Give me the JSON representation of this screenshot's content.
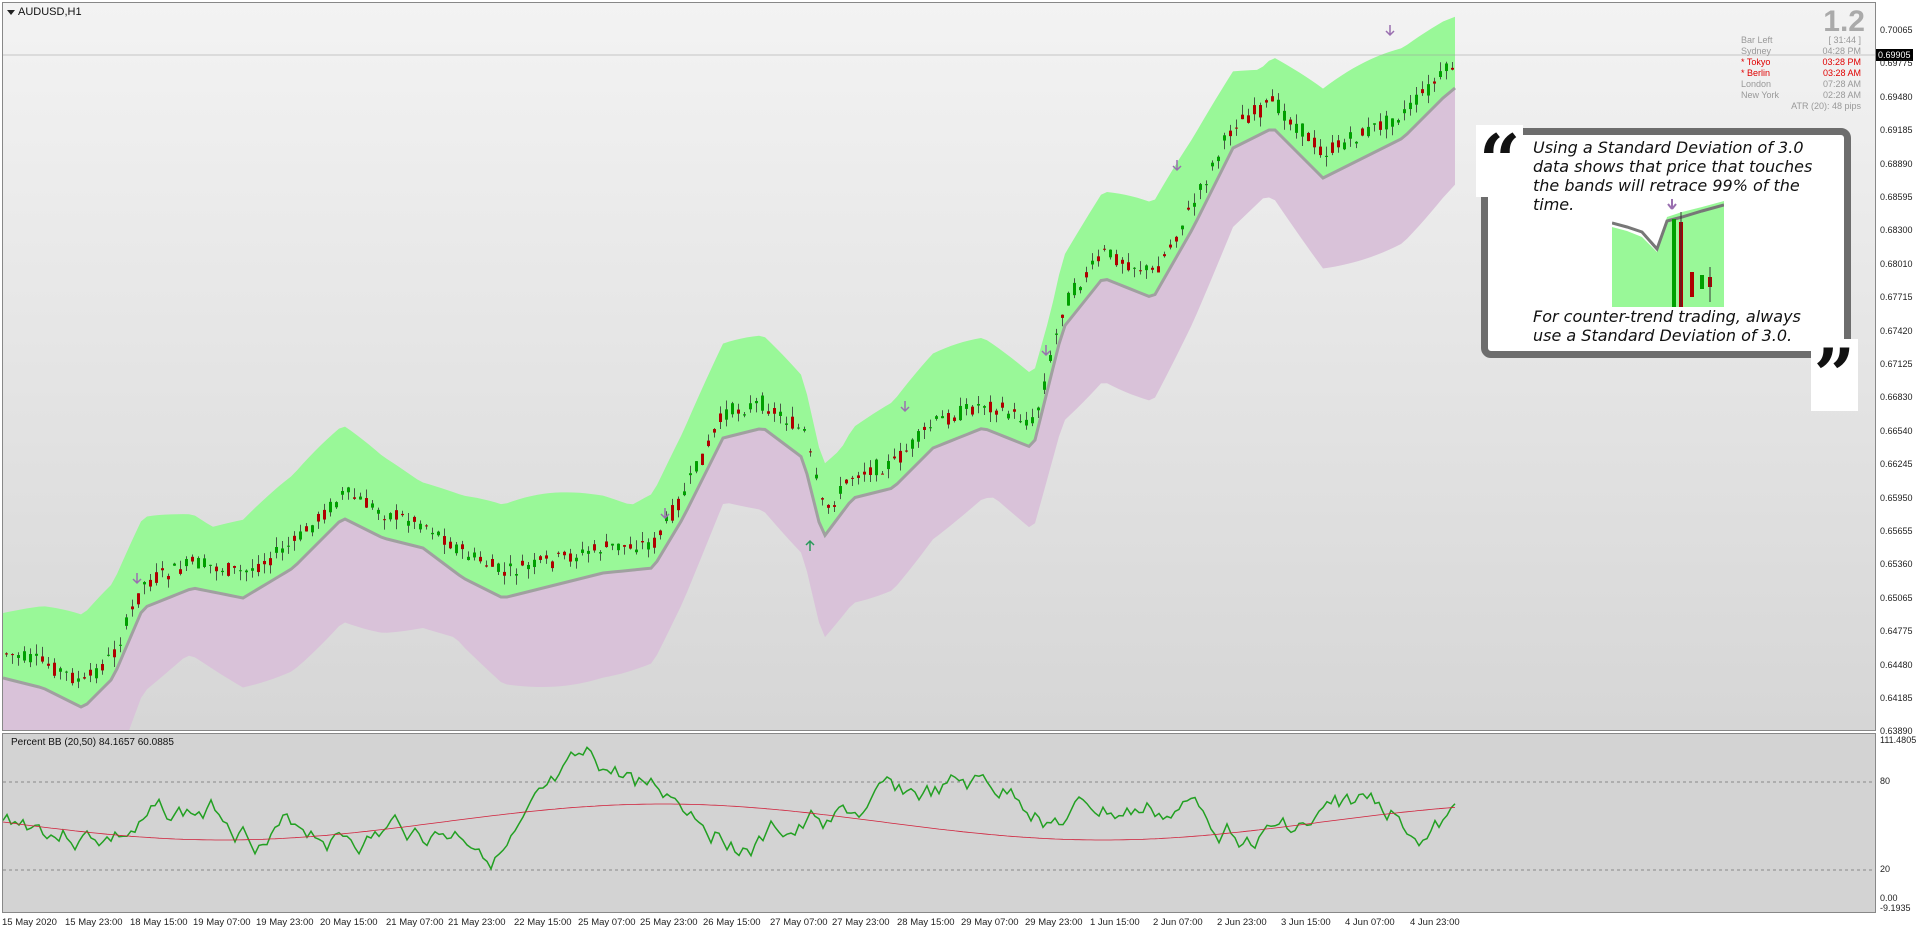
{
  "symbol": "AUDUSD,H1",
  "big_number": "1.2",
  "clocks": [
    {
      "name": "Bar Left",
      "time": "[ 31:44 ]",
      "highlight": false
    },
    {
      "name": "Sydney",
      "time": "04:28 PM",
      "highlight": false
    },
    {
      "name": "* Tokyo",
      "time": "03:28 PM",
      "highlight": true
    },
    {
      "name": "* Berlin",
      "time": "03:28 AM",
      "highlight": true
    },
    {
      "name": "London",
      "time": "07:28 AM",
      "highlight": false
    },
    {
      "name": "New York",
      "time": "02:28 AM",
      "highlight": false
    }
  ],
  "atr": "ATR (20): 48 pips",
  "quote": {
    "line1": "Using a Standard Deviation of 3.0 data shows that price that touches the bands will retrace 99% of the time.",
    "line2": "For counter-trend trading, always use a Standard Deviation of 3.0."
  },
  "price_axis": [
    "0.70065",
    "0.69775",
    "0.69480",
    "0.69185",
    "0.68890",
    "0.68595",
    "0.68300",
    "0.68010",
    "0.67715",
    "0.67420",
    "0.67125",
    "0.66830",
    "0.66540",
    "0.66245",
    "0.65950",
    "0.65655",
    "0.65360",
    "0.65065",
    "0.64775",
    "0.64480",
    "0.64185",
    "0.63890"
  ],
  "current_price": "0.69905",
  "indicator_label": "Percent BB (20,50) 84.1657 60.0885",
  "indicator_axis": {
    "top": "111.4805",
    "upper": "80",
    "lower": "20",
    "zero": "0.00",
    "bottom": "-9.1935"
  },
  "time_axis": [
    "15 May 2020",
    "15 May 23:00",
    "18 May 15:00",
    "19 May 07:00",
    "19 May 23:00",
    "20 May 15:00",
    "21 May 07:00",
    "21 May 23:00",
    "22 May 15:00",
    "25 May 07:00",
    "25 May 23:00",
    "26 May 15:00",
    "27 May 07:00",
    "27 May 23:00",
    "28 May 15:00",
    "29 May 07:00",
    "29 May 23:00",
    "1 Jun 15:00",
    "2 Jun 07:00",
    "2 Jun 23:00",
    "3 Jun 15:00",
    "4 Jun 07:00",
    "4 Jun 23:00"
  ],
  "colors": {
    "upper_band": "#99f898",
    "lower_band": "#d9c2d9",
    "midline": "#a0a0a0",
    "bull_candle": "#00a000",
    "bear_candle": "#b00000",
    "pctbb": "#22a022",
    "signal": "#d0203a",
    "arrow_down": "#9a6fb0",
    "arrow_up": "#2a9a5a"
  },
  "icons": {
    "menu": "triangle-down-icon",
    "quote_open": "quote-open-icon",
    "quote_close": "quote-close-icon",
    "down_arrow": "arrow-down-icon",
    "up_arrow": "arrow-up-icon"
  }
}
